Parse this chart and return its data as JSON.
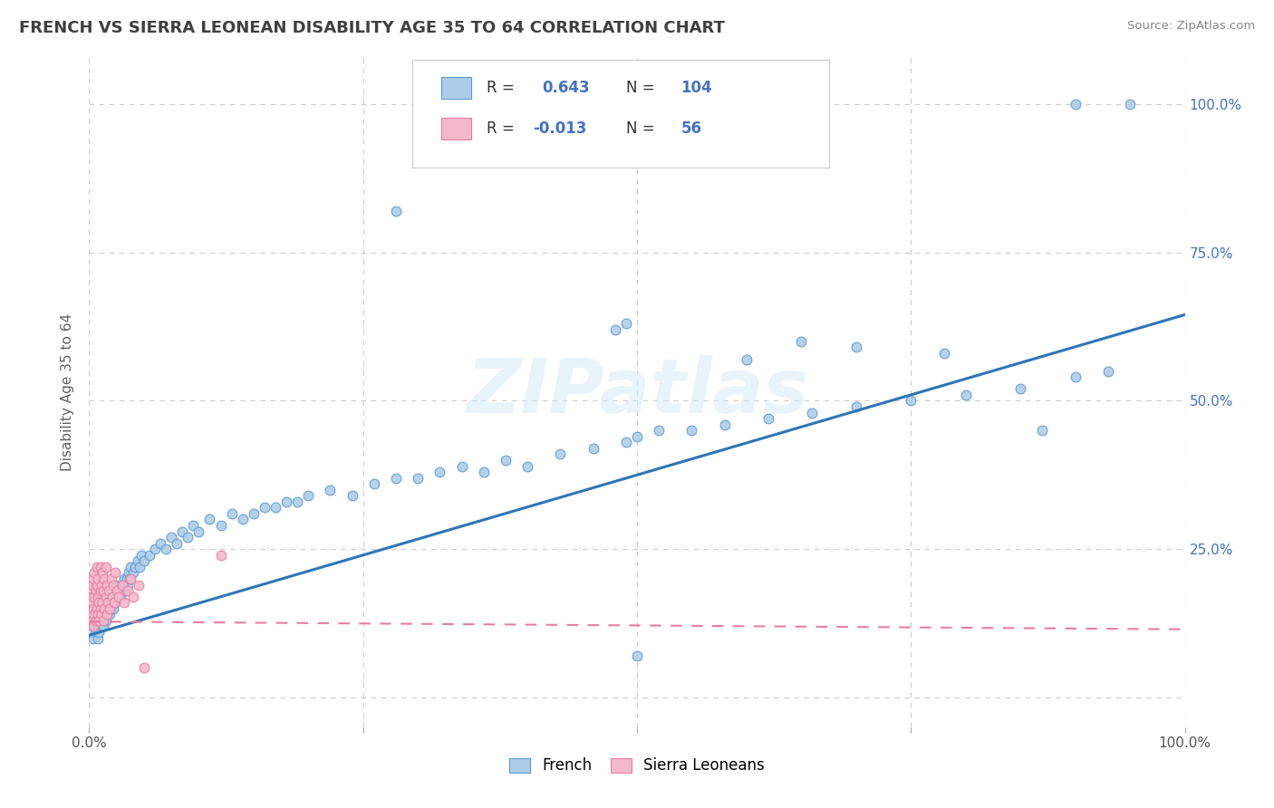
{
  "title": "FRENCH VS SIERRA LEONEAN DISABILITY AGE 35 TO 64 CORRELATION CHART",
  "source": "Source: ZipAtlas.com",
  "ylabel": "Disability Age 35 to 64",
  "xlim": [
    0,
    1.0
  ],
  "ylim": [
    -0.05,
    1.08
  ],
  "blue_R": "0.643",
  "blue_N": "104",
  "pink_R": "-0.013",
  "pink_N": "56",
  "blue_face": "#aecde8",
  "blue_edge": "#5b9bd5",
  "pink_face": "#f4b8cb",
  "pink_edge": "#e87da0",
  "blue_line": "#2e75b6",
  "pink_line": "#e87da0",
  "background": "#ffffff",
  "grid_color": "#cccccc",
  "right_tick_color": "#4472c4",
  "watermark": "ZIPatlas",
  "watermark_color": "#d8eaf7",
  "title_color": "#404040",
  "source_color": "#888888",
  "ylabel_color": "#606060",
  "french_x": [
    0.003,
    0.004,
    0.005,
    0.005,
    0.006,
    0.007,
    0.008,
    0.008,
    0.009,
    0.01,
    0.01,
    0.011,
    0.012,
    0.012,
    0.013,
    0.014,
    0.015,
    0.015,
    0.016,
    0.017,
    0.018,
    0.019,
    0.02,
    0.02,
    0.021,
    0.022,
    0.023,
    0.024,
    0.025,
    0.026,
    0.027,
    0.028,
    0.029,
    0.03,
    0.031,
    0.032,
    0.033,
    0.034,
    0.035,
    0.036,
    0.037,
    0.038,
    0.04,
    0.042,
    0.044,
    0.046,
    0.048,
    0.05,
    0.055,
    0.06,
    0.065,
    0.07,
    0.075,
    0.08,
    0.085,
    0.09,
    0.095,
    0.1,
    0.11,
    0.12,
    0.13,
    0.14,
    0.15,
    0.16,
    0.17,
    0.18,
    0.19,
    0.2,
    0.22,
    0.24,
    0.26,
    0.28,
    0.3,
    0.32,
    0.34,
    0.36,
    0.38,
    0.4,
    0.43,
    0.46,
    0.49,
    0.5,
    0.52,
    0.55,
    0.58,
    0.62,
    0.66,
    0.7,
    0.75,
    0.8,
    0.85,
    0.9,
    0.93,
    0.28,
    0.48,
    0.49,
    0.95,
    0.9,
    0.5,
    0.87,
    0.78,
    0.6,
    0.65,
    0.7
  ],
  "french_y": [
    0.11,
    0.1,
    0.12,
    0.13,
    0.11,
    0.12,
    0.1,
    0.14,
    0.11,
    0.13,
    0.14,
    0.12,
    0.13,
    0.15,
    0.12,
    0.14,
    0.13,
    0.16,
    0.14,
    0.15,
    0.16,
    0.14,
    0.15,
    0.17,
    0.16,
    0.15,
    0.17,
    0.16,
    0.18,
    0.17,
    0.18,
    0.19,
    0.17,
    0.18,
    0.19,
    0.2,
    0.18,
    0.2,
    0.19,
    0.21,
    0.2,
    0.22,
    0.21,
    0.22,
    0.23,
    0.22,
    0.24,
    0.23,
    0.24,
    0.25,
    0.26,
    0.25,
    0.27,
    0.26,
    0.28,
    0.27,
    0.29,
    0.28,
    0.3,
    0.29,
    0.31,
    0.3,
    0.31,
    0.32,
    0.32,
    0.33,
    0.33,
    0.34,
    0.35,
    0.34,
    0.36,
    0.37,
    0.37,
    0.38,
    0.39,
    0.38,
    0.4,
    0.39,
    0.41,
    0.42,
    0.43,
    0.44,
    0.45,
    0.45,
    0.46,
    0.47,
    0.48,
    0.49,
    0.5,
    0.51,
    0.52,
    0.54,
    0.55,
    0.82,
    0.62,
    0.63,
    1.0,
    1.0,
    0.07,
    0.45,
    0.58,
    0.57,
    0.6,
    0.59
  ],
  "sierra_x": [
    0.001,
    0.001,
    0.002,
    0.002,
    0.003,
    0.003,
    0.003,
    0.004,
    0.004,
    0.004,
    0.005,
    0.005,
    0.005,
    0.006,
    0.006,
    0.007,
    0.007,
    0.007,
    0.008,
    0.008,
    0.008,
    0.009,
    0.009,
    0.01,
    0.01,
    0.01,
    0.011,
    0.011,
    0.012,
    0.012,
    0.013,
    0.013,
    0.014,
    0.014,
    0.015,
    0.015,
    0.016,
    0.016,
    0.017,
    0.018,
    0.019,
    0.02,
    0.021,
    0.022,
    0.023,
    0.024,
    0.025,
    0.027,
    0.03,
    0.032,
    0.035,
    0.038,
    0.04,
    0.045,
    0.05,
    0.12
  ],
  "sierra_y": [
    0.15,
    0.18,
    0.14,
    0.17,
    0.13,
    0.16,
    0.19,
    0.12,
    0.15,
    0.2,
    0.14,
    0.17,
    0.21,
    0.13,
    0.18,
    0.15,
    0.19,
    0.22,
    0.14,
    0.17,
    0.2,
    0.13,
    0.16,
    0.15,
    0.18,
    0.22,
    0.14,
    0.19,
    0.16,
    0.21,
    0.13,
    0.18,
    0.15,
    0.2,
    0.17,
    0.22,
    0.14,
    0.19,
    0.16,
    0.18,
    0.15,
    0.2,
    0.17,
    0.19,
    0.16,
    0.21,
    0.18,
    0.17,
    0.19,
    0.16,
    0.18,
    0.2,
    0.17,
    0.19,
    0.05,
    0.24
  ],
  "blue_line_x0": 0.0,
  "blue_line_y0": 0.105,
  "blue_line_x1": 1.0,
  "blue_line_y1": 0.645,
  "pink_line_x0": 0.0,
  "pink_line_y0": 0.128,
  "pink_line_x1": 1.0,
  "pink_line_y1": 0.115
}
